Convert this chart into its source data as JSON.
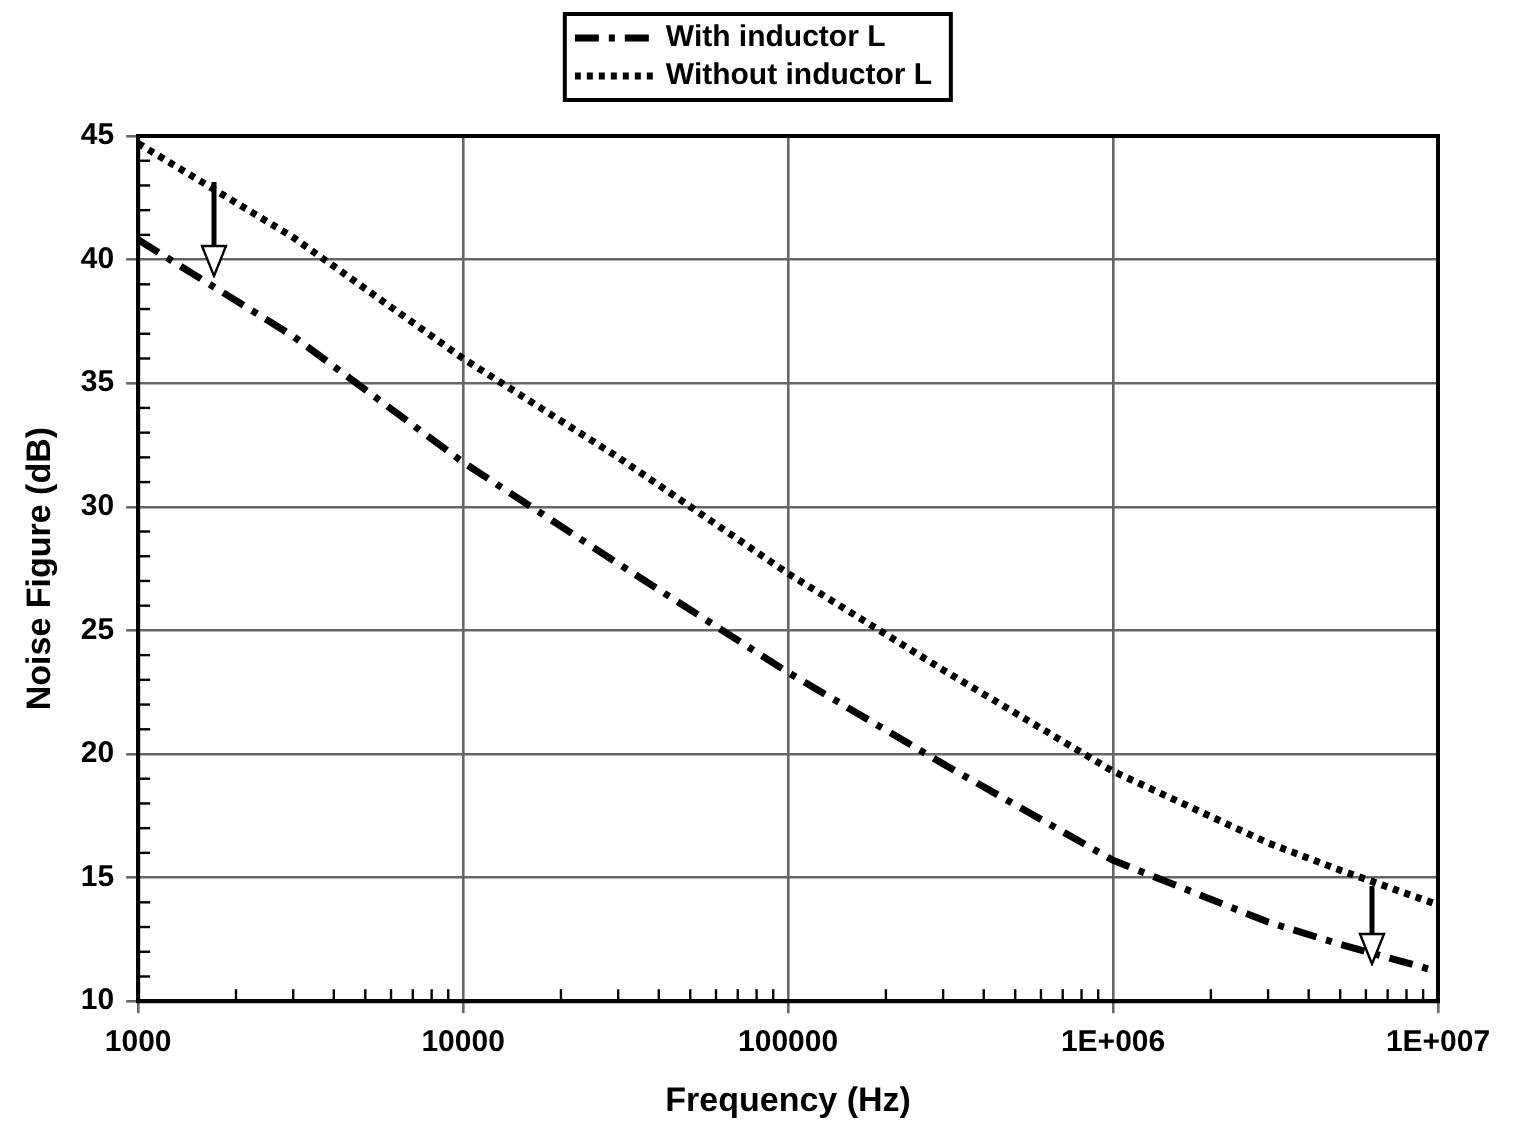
{
  "chart_data": {
    "type": "line",
    "xlabel": "Frequency (Hz)",
    "ylabel": "Noise Figure (dB)",
    "log": "x",
    "grid": true,
    "legend": "top",
    "marker": "none",
    "xlim": [
      1000,
      10000000
    ],
    "xticks": [
      1000,
      10000,
      100000,
      {
        "value": 1000000,
        "label": "1E+006"
      },
      {
        "value": 10000000,
        "label": "1E+007"
      }
    ],
    "ylim": [
      10,
      45
    ],
    "yticks": [
      10,
      15,
      20,
      25,
      30,
      35,
      40,
      45
    ],
    "x": [
      1000,
      3000,
      10000,
      30000,
      100000,
      300000,
      1000000,
      3000000,
      5000000,
      10000000
    ],
    "series": [
      {
        "name": "With inductor L",
        "color": "#000000",
        "line_style": "dashed",
        "values": [
          40.8,
          36.9,
          31.8,
          27.7,
          23.3,
          19.6,
          15.7,
          13.2,
          12.3,
          11.2
        ]
      },
      {
        "name": "Without inductor L",
        "color": "#000000",
        "line_style": "dotted",
        "values": [
          44.7,
          40.9,
          36.0,
          32.0,
          27.3,
          23.4,
          19.3,
          16.4,
          15.3,
          13.9
        ]
      }
    ]
  }
}
